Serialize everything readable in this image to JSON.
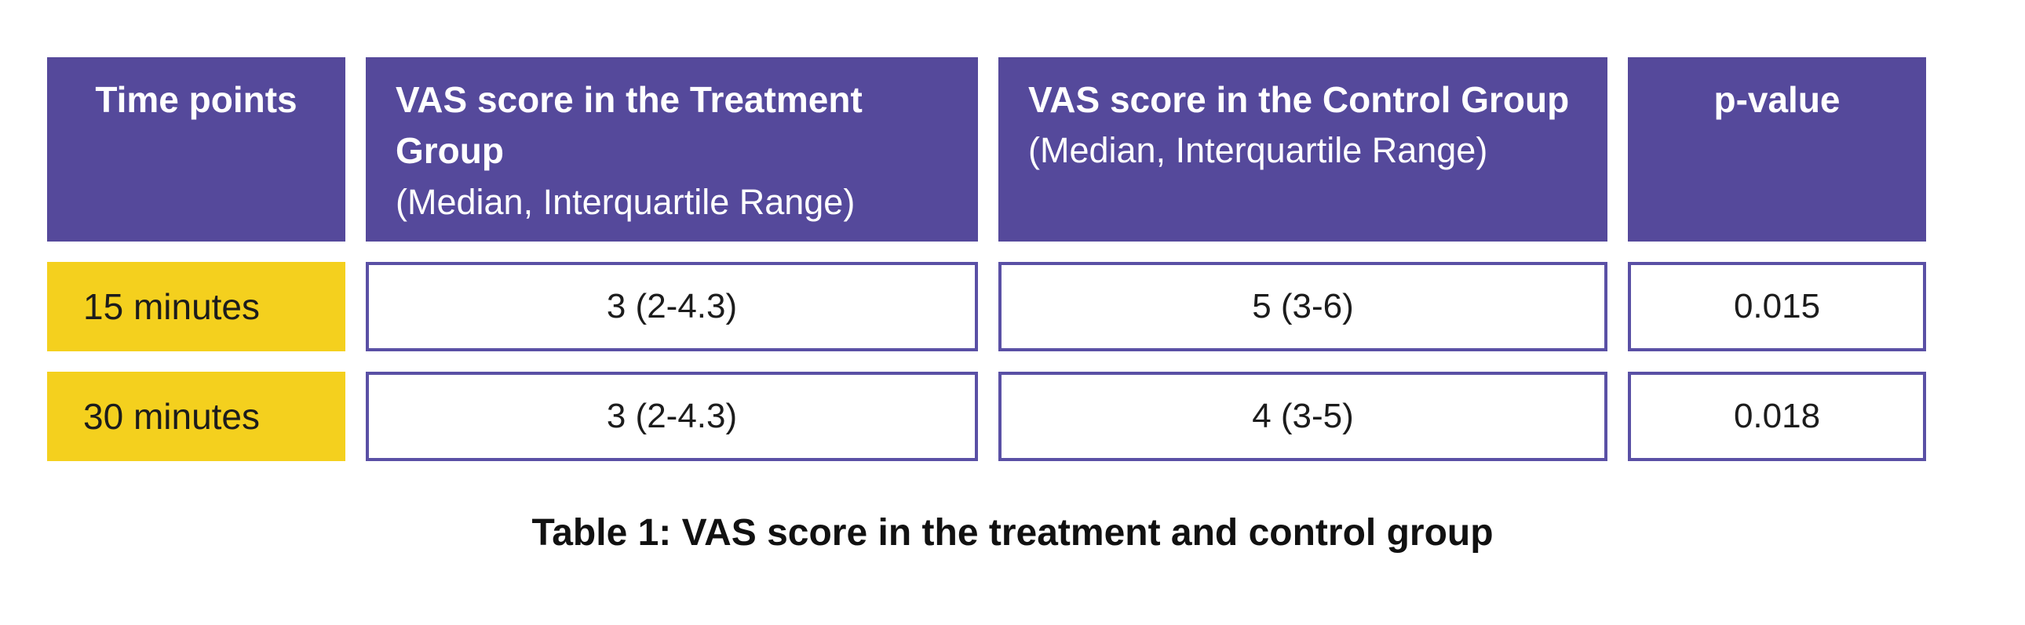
{
  "table": {
    "columns": [
      {
        "label": "Time points"
      },
      {
        "title": "VAS score in the Treatment Group",
        "subtitle": "(Median, Interquartile Range)"
      },
      {
        "title": "VAS score in the Control Group",
        "subtitle": "(Median, Interquartile Range)"
      },
      {
        "label": "p-value"
      }
    ],
    "rows": [
      {
        "time": "15 minutes",
        "treatment": "3 (2-4.3)",
        "control": "5 (3-6)",
        "p": "0.015"
      },
      {
        "time": "30 minutes",
        "treatment": "3 (2-4.3)",
        "control": "4 (3-5)",
        "p": "0.018"
      }
    ]
  },
  "caption": "Table 1: VAS score in the treatment and control group",
  "chart_data": {
    "type": "table",
    "title": "Table 1: VAS score in the treatment and control group",
    "columns": [
      "Time points",
      "VAS score in the Treatment Group (Median, Interquartile Range)",
      "VAS score in the Control Group (Median, Interquartile Range)",
      "p-value"
    ],
    "rows": [
      [
        "15 minutes",
        "3 (2-4.3)",
        "5 (3-6)",
        "0.015"
      ],
      [
        "30 minutes",
        "3 (2-4.3)",
        "4 (3-5)",
        "0.018"
      ]
    ]
  },
  "colors": {
    "header_purple": "#55499B",
    "cell_border_purple": "#5A50A5",
    "row_yellow": "#F4D01E",
    "header_text": "#FFFFFF",
    "body_text": "#1C1C1C"
  }
}
